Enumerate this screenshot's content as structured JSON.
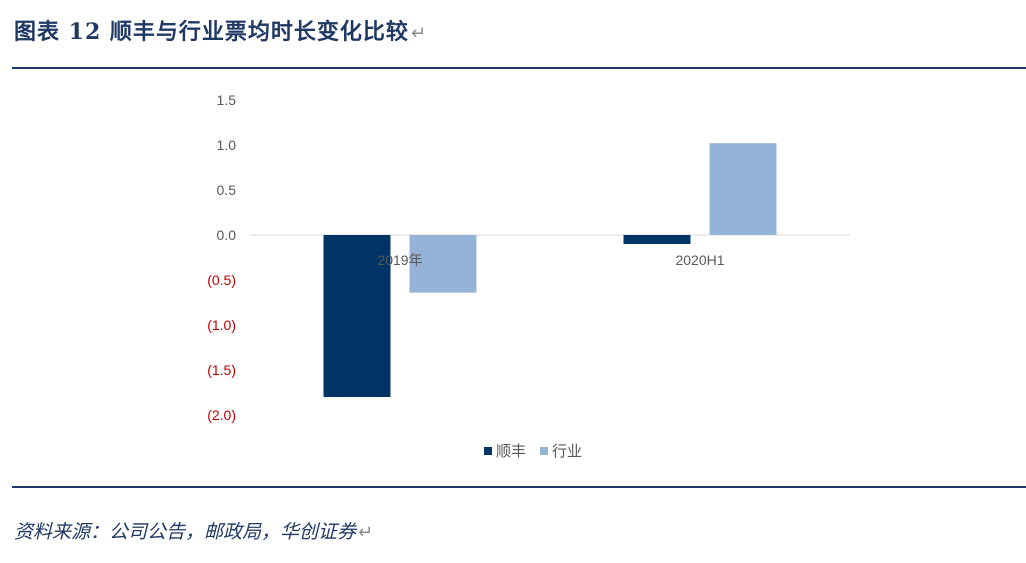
{
  "header": {
    "title": "图表  12  顺丰与行业票均时长变化比较",
    "return_mark": "↵"
  },
  "footer": {
    "source": "资料来源：公司公告，邮政局，华创证券",
    "return_mark": "↵"
  },
  "colors": {
    "rule": "#1f3864",
    "title": "#1f3864",
    "series_sf": "#003366",
    "series_industry": "#95b3d7",
    "negative_tick": "#c00000",
    "positive_tick": "#595959"
  },
  "chart_data": {
    "type": "bar",
    "title": "",
    "xlabel": "",
    "ylabel": "",
    "categories": [
      "2019年",
      "2020H1"
    ],
    "series": [
      {
        "name": "顺丰",
        "values": [
          -1.8,
          -0.1
        ]
      },
      {
        "name": "行业",
        "values": [
          -0.64,
          1.02
        ]
      }
    ],
    "ylim": [
      -2.0,
      1.5
    ],
    "yticks": [
      1.5,
      1.0,
      0.5,
      0.0,
      -0.5,
      -1.0,
      -1.5,
      -2.0
    ],
    "ytick_labels": [
      "1.5",
      "1.0",
      "0.5",
      "0.0",
      "(0.5)",
      "(1.0)",
      "(1.5)",
      "(2.0)"
    ],
    "grid": false,
    "legend": "bottom"
  }
}
